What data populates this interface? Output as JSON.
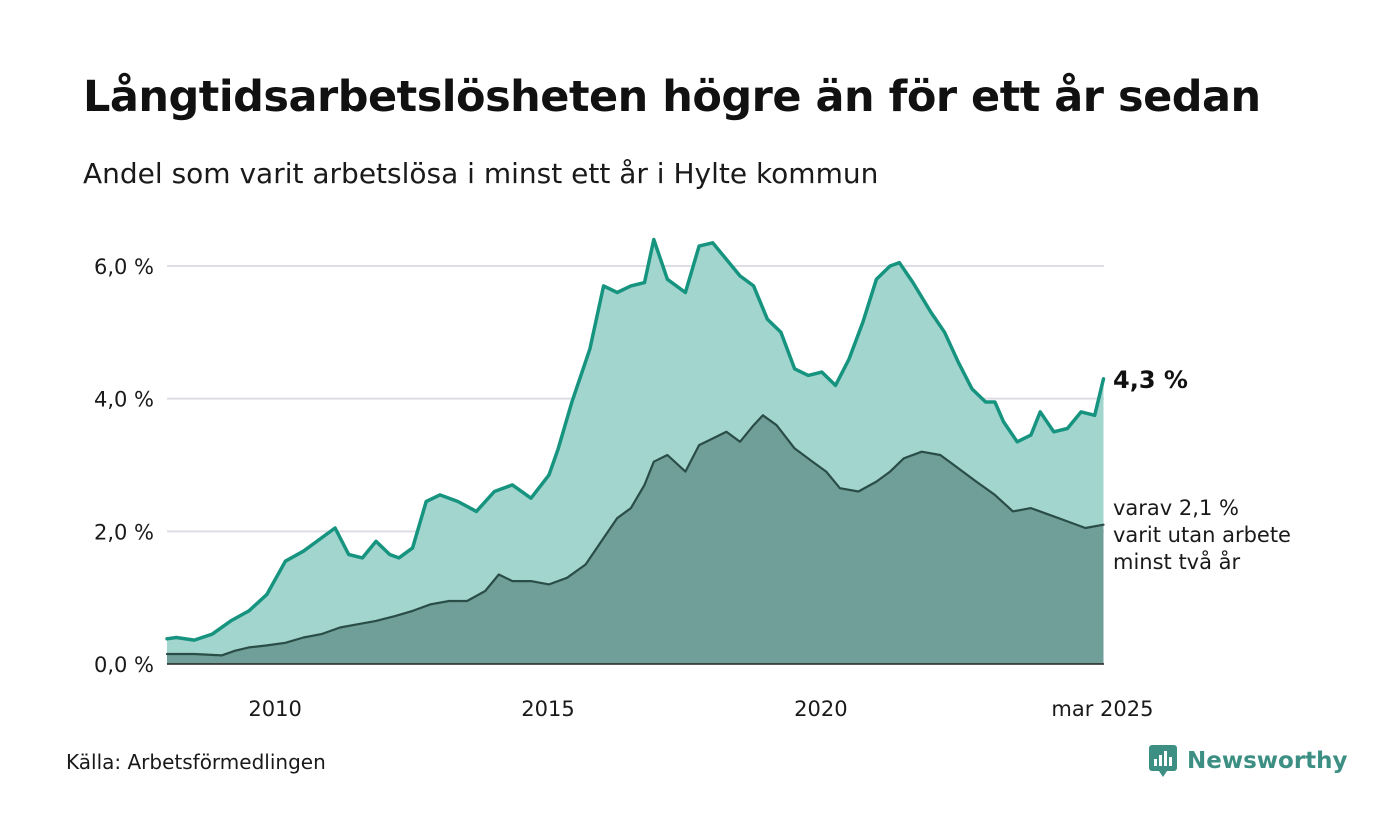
{
  "title": "Långtidsarbetslösheten högre än för ett år sedan",
  "subtitle": "Andel som varit arbetslösa i minst ett år i Hylte kommun",
  "source": "Källa: Arbetsförmedlingen",
  "brand": "Newsworthy",
  "colors": {
    "main_line": "#17947f",
    "main_fill": "#a3d5cf",
    "sub_line": "#2a4d48",
    "sub_fill": "#709e98",
    "grid": "#dddde3",
    "brand": "#3d8f84"
  },
  "chart_data": {
    "type": "area",
    "y_ticks": [
      {
        "value": 0,
        "label": "0,0 %"
      },
      {
        "value": 2,
        "label": "2,0 %"
      },
      {
        "value": 4,
        "label": "4,0 %"
      },
      {
        "value": 6,
        "label": "6,0 %"
      }
    ],
    "x_ticks": [
      {
        "value": 2010.0,
        "label": "2010"
      },
      {
        "value": 2015.0,
        "label": "2015"
      },
      {
        "value": 2020.0,
        "label": "2020"
      },
      {
        "value": 2025.16,
        "label": "mar 2025"
      }
    ],
    "ylim": [
      0,
      6.4
    ],
    "xlim": [
      2008.0,
      2025.17
    ],
    "grid": true,
    "series": [
      {
        "name": "Andel som varit arbetslösa i minst ett år",
        "x": [
          2008.0,
          2008.17,
          2008.5,
          2008.83,
          2009.17,
          2009.5,
          2009.83,
          2010.17,
          2010.5,
          2010.83,
          2011.08,
          2011.33,
          2011.58,
          2011.83,
          2012.08,
          2012.25,
          2012.5,
          2012.75,
          2013.0,
          2013.33,
          2013.67,
          2014.0,
          2014.33,
          2014.67,
          2015.0,
          2015.17,
          2015.42,
          2015.75,
          2016.0,
          2016.25,
          2016.5,
          2016.75,
          2016.92,
          2017.17,
          2017.5,
          2017.75,
          2018.0,
          2018.25,
          2018.5,
          2018.75,
          2019.0,
          2019.25,
          2019.5,
          2019.75,
          2020.0,
          2020.25,
          2020.5,
          2020.75,
          2021.0,
          2021.25,
          2021.42,
          2021.67,
          2022.0,
          2022.25,
          2022.5,
          2022.75,
          2023.0,
          2023.17,
          2023.33,
          2023.58,
          2023.83,
          2024.0,
          2024.25,
          2024.5,
          2024.75,
          2025.0,
          2025.16
        ],
        "values": [
          0.38,
          0.4,
          0.36,
          0.45,
          0.65,
          0.8,
          1.05,
          1.55,
          1.7,
          1.9,
          2.05,
          1.65,
          1.6,
          1.85,
          1.65,
          1.6,
          1.75,
          2.45,
          2.55,
          2.45,
          2.3,
          2.6,
          2.7,
          2.5,
          2.85,
          3.25,
          3.95,
          4.75,
          5.7,
          5.6,
          5.7,
          5.75,
          6.4,
          5.8,
          5.6,
          6.3,
          6.35,
          6.1,
          5.85,
          5.7,
          5.2,
          5.0,
          4.45,
          4.35,
          4.4,
          4.2,
          4.6,
          5.15,
          5.8,
          6.0,
          6.05,
          5.75,
          5.3,
          5.0,
          4.55,
          4.15,
          3.95,
          3.95,
          3.65,
          3.35,
          3.45,
          3.8,
          3.5,
          3.55,
          3.8,
          3.75,
          4.3
        ]
      },
      {
        "name": "varit utan arbete minst två år",
        "x": [
          2008.0,
          2008.5,
          2009.0,
          2009.25,
          2009.5,
          2009.83,
          2010.17,
          2010.5,
          2010.83,
          2011.17,
          2011.5,
          2011.83,
          2012.17,
          2012.5,
          2012.83,
          2013.17,
          2013.5,
          2013.83,
          2014.08,
          2014.33,
          2014.67,
          2015.0,
          2015.33,
          2015.67,
          2016.0,
          2016.25,
          2016.5,
          2016.75,
          2016.92,
          2017.17,
          2017.5,
          2017.75,
          2018.0,
          2018.25,
          2018.5,
          2018.75,
          2018.92,
          2019.17,
          2019.5,
          2019.83,
          2020.08,
          2020.33,
          2020.67,
          2021.0,
          2021.25,
          2021.5,
          2021.83,
          2022.17,
          2022.5,
          2022.83,
          2023.17,
          2023.5,
          2023.83,
          2024.17,
          2024.5,
          2024.83,
          2025.16
        ],
        "values": [
          0.15,
          0.15,
          0.13,
          0.2,
          0.25,
          0.28,
          0.32,
          0.4,
          0.45,
          0.55,
          0.6,
          0.65,
          0.72,
          0.8,
          0.9,
          0.95,
          0.95,
          1.1,
          1.35,
          1.25,
          1.25,
          1.2,
          1.3,
          1.5,
          1.9,
          2.2,
          2.35,
          2.7,
          3.05,
          3.15,
          2.9,
          3.3,
          3.4,
          3.5,
          3.35,
          3.6,
          3.75,
          3.6,
          3.25,
          3.05,
          2.9,
          2.65,
          2.6,
          2.75,
          2.9,
          3.1,
          3.2,
          3.15,
          2.95,
          2.75,
          2.55,
          2.3,
          2.35,
          2.25,
          2.15,
          2.05,
          2.1
        ]
      }
    ],
    "end_label_main": "4,3 %",
    "end_label_sub": [
      "varav 2,1 %",
      "varit utan arbete",
      "minst två år"
    ]
  }
}
